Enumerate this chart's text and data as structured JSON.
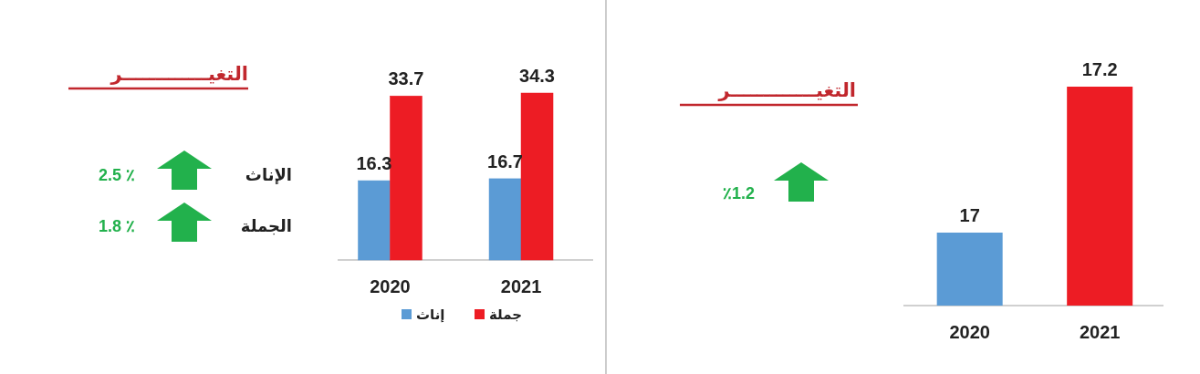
{
  "chart_data": [
    {
      "type": "bar",
      "title": "التغيـــــــــــــر",
      "categories": [
        "2020",
        "2021"
      ],
      "series": [
        {
          "name": "إناث",
          "color": "#5b9bd5",
          "values": [
            16.3,
            16.7
          ]
        },
        {
          "name": "جملة",
          "color": "#ed1c24",
          "values": [
            33.7,
            34.3
          ]
        }
      ],
      "ylim": [
        0,
        34.3
      ],
      "data_labels": true,
      "legend": "bottom",
      "annotations": [
        "الإناث",
        "2.5 ٪",
        "الجملة",
        "1.8 ٪"
      ]
    },
    {
      "type": "bar",
      "title": "التغيـــــــــــــر",
      "categories": [
        "2020",
        "2021"
      ],
      "values": [
        17,
        17.2
      ],
      "colors": [
        "#5b9bd5",
        "#ed1c24"
      ],
      "ylim": [
        16.9,
        17.2
      ],
      "data_labels": true,
      "annotations": [
        "٪1.2"
      ]
    }
  ]
}
